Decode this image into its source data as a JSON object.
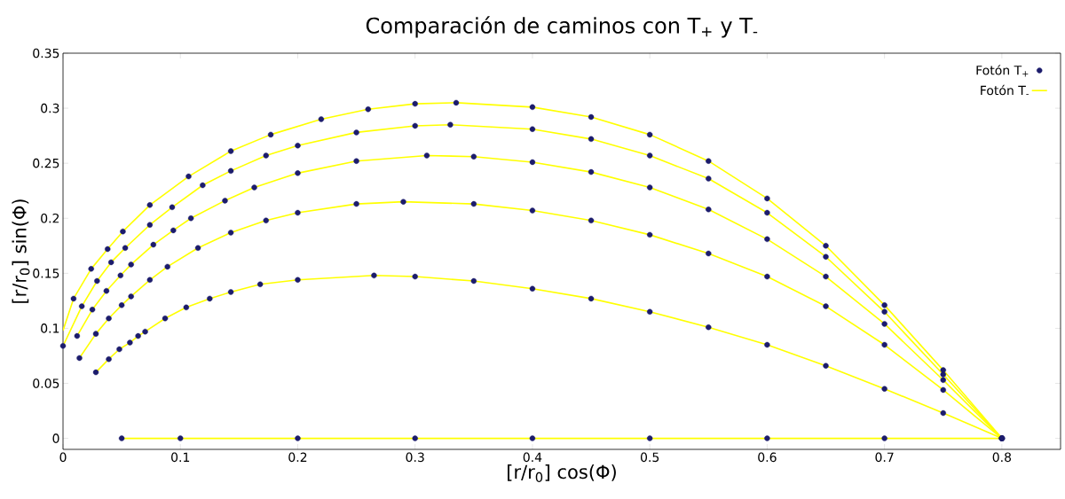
{
  "chart_data": {
    "type": "line",
    "title": "Comparación de caminos con T$_{+}$ y T$_{-}$",
    "xlabel": "[r/r$_{0}$] cos(Φ)",
    "ylabel": "[r/r$_{0}$] sin(Φ)",
    "xlim": [
      0,
      0.85
    ],
    "ylim": [
      -0.01,
      0.35
    ],
    "xticks": [
      0,
      0.1,
      0.2,
      0.3,
      0.4,
      0.5,
      0.6,
      0.7,
      0.8
    ],
    "yticks": [
      0,
      0.05,
      0.1,
      0.15,
      0.2,
      0.25,
      0.3,
      0.35
    ],
    "legend": "top right",
    "series": [
      {
        "name": "Fotón T$_{+}$",
        "type": "scatter",
        "color": "#1c1c6c",
        "x": [
          0.009,
          0.024,
          0.038,
          0.051,
          0.074,
          0.107,
          0.143,
          0.177,
          0.22,
          0.26,
          0.3,
          0.335,
          0.4,
          0.45,
          0.5,
          0.55,
          0.6,
          0.65,
          0.7,
          0.75,
          0.8
        ],
        "values": [
          0.127,
          0.154,
          0.172,
          0.188,
          0.212,
          0.238,
          0.261,
          0.276,
          0.29,
          0.299,
          0.304,
          0.305,
          0.301,
          0.292,
          0.276,
          0.252,
          0.218,
          0.175,
          0.121,
          0.062,
          0
        ]
      },
      {
        "name": "Fotón T$_{-}$",
        "color": "#ffff00",
        "x": [
          0,
          0.009,
          0.024,
          0.038,
          0.051,
          0.074,
          0.107,
          0.143,
          0.177,
          0.22,
          0.26,
          0.3,
          0.335,
          0.4,
          0.45,
          0.5,
          0.55,
          0.6,
          0.65,
          0.7,
          0.75,
          0.8
        ],
        "values": [
          0.098,
          0.127,
          0.154,
          0.172,
          0.188,
          0.212,
          0.238,
          0.261,
          0.276,
          0.29,
          0.299,
          0.304,
          0.305,
          0.301,
          0.292,
          0.276,
          0.252,
          0.218,
          0.175,
          0.121,
          0.062,
          0
        ]
      },
      {
        "type": "scatter",
        "color": "#1c1c6c",
        "x": [
          0,
          0.016,
          0.029,
          0.041,
          0.053,
          0.074,
          0.093,
          0.119,
          0.143,
          0.173,
          0.2,
          0.25,
          0.3,
          0.33,
          0.4,
          0.45,
          0.5,
          0.55,
          0.6,
          0.65,
          0.7,
          0.75,
          0.8
        ],
        "values": [
          0.084,
          0.12,
          0.143,
          0.16,
          0.173,
          0.194,
          0.21,
          0.23,
          0.243,
          0.257,
          0.266,
          0.278,
          0.284,
          0.285,
          0.281,
          0.272,
          0.257,
          0.236,
          0.205,
          0.165,
          0.115,
          0.058,
          0
        ]
      },
      {
        "color": "#ffff00",
        "x": [
          0,
          0.016,
          0.029,
          0.041,
          0.053,
          0.074,
          0.093,
          0.119,
          0.143,
          0.173,
          0.2,
          0.25,
          0.3,
          0.33,
          0.4,
          0.45,
          0.5,
          0.55,
          0.6,
          0.65,
          0.7,
          0.75,
          0.8
        ],
        "values": [
          0.084,
          0.12,
          0.143,
          0.16,
          0.173,
          0.194,
          0.21,
          0.23,
          0.243,
          0.257,
          0.266,
          0.278,
          0.284,
          0.285,
          0.281,
          0.272,
          0.257,
          0.236,
          0.205,
          0.165,
          0.115,
          0.058,
          0
        ]
      },
      {
        "type": "scatter",
        "color": "#1c1c6c",
        "x": [
          0.012,
          0.025,
          0.037,
          0.049,
          0.058,
          0.077,
          0.094,
          0.109,
          0.138,
          0.163,
          0.2,
          0.25,
          0.31,
          0.35,
          0.4,
          0.45,
          0.5,
          0.55,
          0.6,
          0.65,
          0.7,
          0.75,
          0.8
        ],
        "values": [
          0.093,
          0.117,
          0.134,
          0.148,
          0.158,
          0.176,
          0.189,
          0.2,
          0.216,
          0.228,
          0.241,
          0.252,
          0.257,
          0.256,
          0.251,
          0.242,
          0.228,
          0.208,
          0.181,
          0.147,
          0.104,
          0.053,
          0
        ]
      },
      {
        "color": "#ffff00",
        "x": [
          0.012,
          0.025,
          0.037,
          0.049,
          0.058,
          0.077,
          0.094,
          0.109,
          0.138,
          0.163,
          0.2,
          0.25,
          0.31,
          0.35,
          0.4,
          0.45,
          0.5,
          0.55,
          0.6,
          0.65,
          0.7,
          0.75,
          0.8
        ],
        "values": [
          0.093,
          0.117,
          0.134,
          0.148,
          0.158,
          0.176,
          0.189,
          0.2,
          0.216,
          0.228,
          0.241,
          0.252,
          0.257,
          0.256,
          0.251,
          0.242,
          0.228,
          0.208,
          0.181,
          0.147,
          0.104,
          0.053,
          0
        ]
      },
      {
        "type": "scatter",
        "color": "#1c1c6c",
        "x": [
          0.014,
          0.028,
          0.039,
          0.05,
          0.058,
          0.074,
          0.089,
          0.115,
          0.143,
          0.173,
          0.2,
          0.25,
          0.29,
          0.35,
          0.4,
          0.45,
          0.5,
          0.55,
          0.6,
          0.65,
          0.7,
          0.75,
          0.8
        ],
        "values": [
          0.073,
          0.095,
          0.109,
          0.121,
          0.129,
          0.144,
          0.156,
          0.173,
          0.187,
          0.198,
          0.205,
          0.213,
          0.215,
          0.213,
          0.207,
          0.198,
          0.185,
          0.168,
          0.147,
          0.12,
          0.085,
          0.044,
          0
        ]
      },
      {
        "color": "#ffff00",
        "x": [
          0.014,
          0.028,
          0.039,
          0.05,
          0.058,
          0.074,
          0.089,
          0.115,
          0.143,
          0.173,
          0.2,
          0.25,
          0.29,
          0.35,
          0.4,
          0.45,
          0.5,
          0.55,
          0.6,
          0.65,
          0.7,
          0.75,
          0.8
        ],
        "values": [
          0.073,
          0.095,
          0.109,
          0.121,
          0.129,
          0.144,
          0.156,
          0.173,
          0.187,
          0.198,
          0.205,
          0.213,
          0.215,
          0.213,
          0.207,
          0.198,
          0.185,
          0.168,
          0.147,
          0.12,
          0.085,
          0.044,
          0
        ]
      },
      {
        "type": "scatter",
        "color": "#1c1c6c",
        "x": [
          0.028,
          0.039,
          0.048,
          0.057,
          0.064,
          0.07,
          0.087,
          0.105,
          0.125,
          0.143,
          0.168,
          0.2,
          0.265,
          0.3,
          0.35,
          0.4,
          0.45,
          0.5,
          0.55,
          0.6,
          0.65,
          0.7,
          0.75,
          0.8
        ],
        "values": [
          0.06,
          0.072,
          0.081,
          0.087,
          0.093,
          0.097,
          0.109,
          0.119,
          0.127,
          0.133,
          0.14,
          0.144,
          0.148,
          0.147,
          0.143,
          0.136,
          0.127,
          0.115,
          0.101,
          0.085,
          0.066,
          0.045,
          0.023,
          0
        ]
      },
      {
        "color": "#ffff00",
        "x": [
          0.028,
          0.039,
          0.048,
          0.057,
          0.064,
          0.07,
          0.087,
          0.105,
          0.125,
          0.143,
          0.168,
          0.2,
          0.265,
          0.3,
          0.35,
          0.4,
          0.45,
          0.5,
          0.55,
          0.6,
          0.65,
          0.7,
          0.75,
          0.8
        ],
        "values": [
          0.06,
          0.072,
          0.081,
          0.087,
          0.093,
          0.097,
          0.109,
          0.119,
          0.127,
          0.133,
          0.14,
          0.144,
          0.148,
          0.147,
          0.143,
          0.136,
          0.127,
          0.115,
          0.101,
          0.085,
          0.066,
          0.045,
          0.023,
          0
        ]
      },
      {
        "type": "scatter",
        "color": "#1c1c6c",
        "x": [
          0.05,
          0.1,
          0.2,
          0.3,
          0.4,
          0.5,
          0.6,
          0.7,
          0.8
        ],
        "values": [
          0,
          0,
          0,
          0,
          0,
          0,
          0,
          0,
          0
        ]
      },
      {
        "color": "#ffff00",
        "x": [
          0.05,
          0.8
        ],
        "values": [
          0,
          0
        ]
      }
    ]
  }
}
